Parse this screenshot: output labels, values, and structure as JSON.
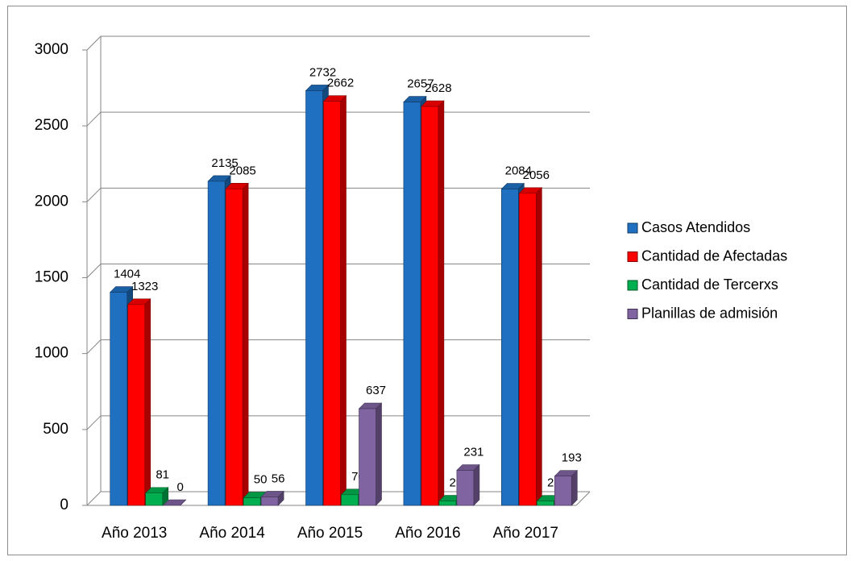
{
  "chart_data": {
    "type": "bar3d",
    "categories": [
      "Año 2013",
      "Año 2014",
      "Año 2015",
      "Año 2016",
      "Año 2017"
    ],
    "series": [
      {
        "name": "Casos Atendidos",
        "color": "#1f70c1",
        "values": [
          1404,
          2135,
          2732,
          2657,
          2084
        ]
      },
      {
        "name": "Cantidad de Afectadas",
        "color": "#ff0000",
        "values": [
          1323,
          2085,
          2662,
          2628,
          2056
        ]
      },
      {
        "name": "Cantidad de Tercerxs",
        "color": "#00b050",
        "values": [
          81,
          50,
          70,
          29,
          28
        ]
      },
      {
        "name": "Planillas de admisión",
        "color": "#8064a2",
        "values": [
          0,
          56,
          637,
          231,
          193
        ]
      }
    ],
    "ylim": [
      0,
      3000
    ],
    "yticks": [
      0,
      500,
      1000,
      1500,
      2000,
      2500,
      3000
    ],
    "grid": true,
    "legend": "right"
  }
}
